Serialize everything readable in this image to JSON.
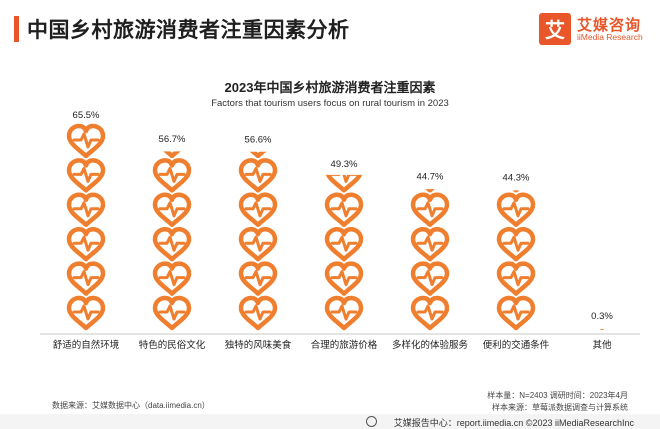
{
  "page_title": "中国乡村旅游消费者注重因素分析",
  "logo": {
    "name": "艾媒咨询",
    "sub": "iiMedia Research",
    "mark_glyph": "艾",
    "color": "#e8562a"
  },
  "chart_data": {
    "type": "pictogram-bar",
    "title": "2023年中国乡村旅游消费者注重因素",
    "subtitle": "Factors that tourism users focus on rural tourism in 2023",
    "categories": [
      "舒适的自然环境",
      "特色的民俗文化",
      "独特的风味美食",
      "合理的旅游价格",
      "多样化的体验服务",
      "便利的交通条件",
      "其他"
    ],
    "values": [
      65.5,
      56.7,
      56.6,
      49.3,
      44.7,
      44.3,
      0.3
    ],
    "value_labels": [
      "65.5%",
      "56.7%",
      "56.6%",
      "49.3%",
      "44.7%",
      "44.3%",
      "0.3%"
    ],
    "unit": "%",
    "icon": "heartbeat-heart-icon",
    "color": "#ef7f2e"
  },
  "source_note": "数据来源：艾媒数据中心（data.iimedia.cn）",
  "sample_info": {
    "line1": "样本量：N=2403    调研时间：2023年4月",
    "line2": "样本来源：草莓派数据调查与计算系统"
  },
  "footer": "艾媒报告中心：report.iimedia.cn  ©2023 iiMediaResearchInc"
}
